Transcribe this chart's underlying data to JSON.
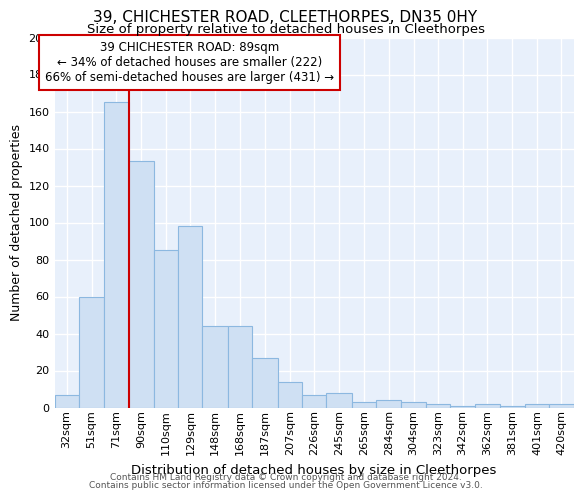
{
  "title": "39, CHICHESTER ROAD, CLEETHORPES, DN35 0HY",
  "subtitle": "Size of property relative to detached houses in Cleethorpes",
  "xlabel": "Distribution of detached houses by size in Cleethorpes",
  "ylabel": "Number of detached properties",
  "bar_color": "#cfe0f3",
  "bar_edge_color": "#8cb8e0",
  "background_color": "#e8f0fb",
  "grid_color": "#ffffff",
  "categories": [
    "32sqm",
    "51sqm",
    "71sqm",
    "90sqm",
    "110sqm",
    "129sqm",
    "148sqm",
    "168sqm",
    "187sqm",
    "207sqm",
    "226sqm",
    "245sqm",
    "265sqm",
    "284sqm",
    "304sqm",
    "323sqm",
    "342sqm",
    "362sqm",
    "381sqm",
    "401sqm",
    "420sqm"
  ],
  "values": [
    7,
    60,
    165,
    133,
    85,
    98,
    44,
    44,
    27,
    14,
    7,
    8,
    3,
    4,
    3,
    2,
    1,
    2,
    1,
    2,
    2
  ],
  "red_line_x": 90,
  "bin_edges": [
    32,
    51,
    71,
    90,
    110,
    129,
    148,
    168,
    187,
    207,
    226,
    245,
    265,
    284,
    304,
    323,
    342,
    362,
    381,
    401,
    420,
    439
  ],
  "annotation_title": "39 CHICHESTER ROAD: 89sqm",
  "annotation_line1": "← 34% of detached houses are smaller (222)",
  "annotation_line2": "66% of semi-detached houses are larger (431) →",
  "footer_line1": "Contains HM Land Registry data © Crown copyright and database right 2024.",
  "footer_line2": "Contains public sector information licensed under the Open Government Licence v3.0.",
  "ylim": [
    0,
    200
  ],
  "yticks": [
    0,
    20,
    40,
    60,
    80,
    100,
    120,
    140,
    160,
    180,
    200
  ],
  "title_fontsize": 11,
  "subtitle_fontsize": 9.5,
  "ylabel_fontsize": 9,
  "xlabel_fontsize": 9.5,
  "tick_fontsize": 8,
  "ann_fontsize": 8.5,
  "footer_fontsize": 6.5
}
